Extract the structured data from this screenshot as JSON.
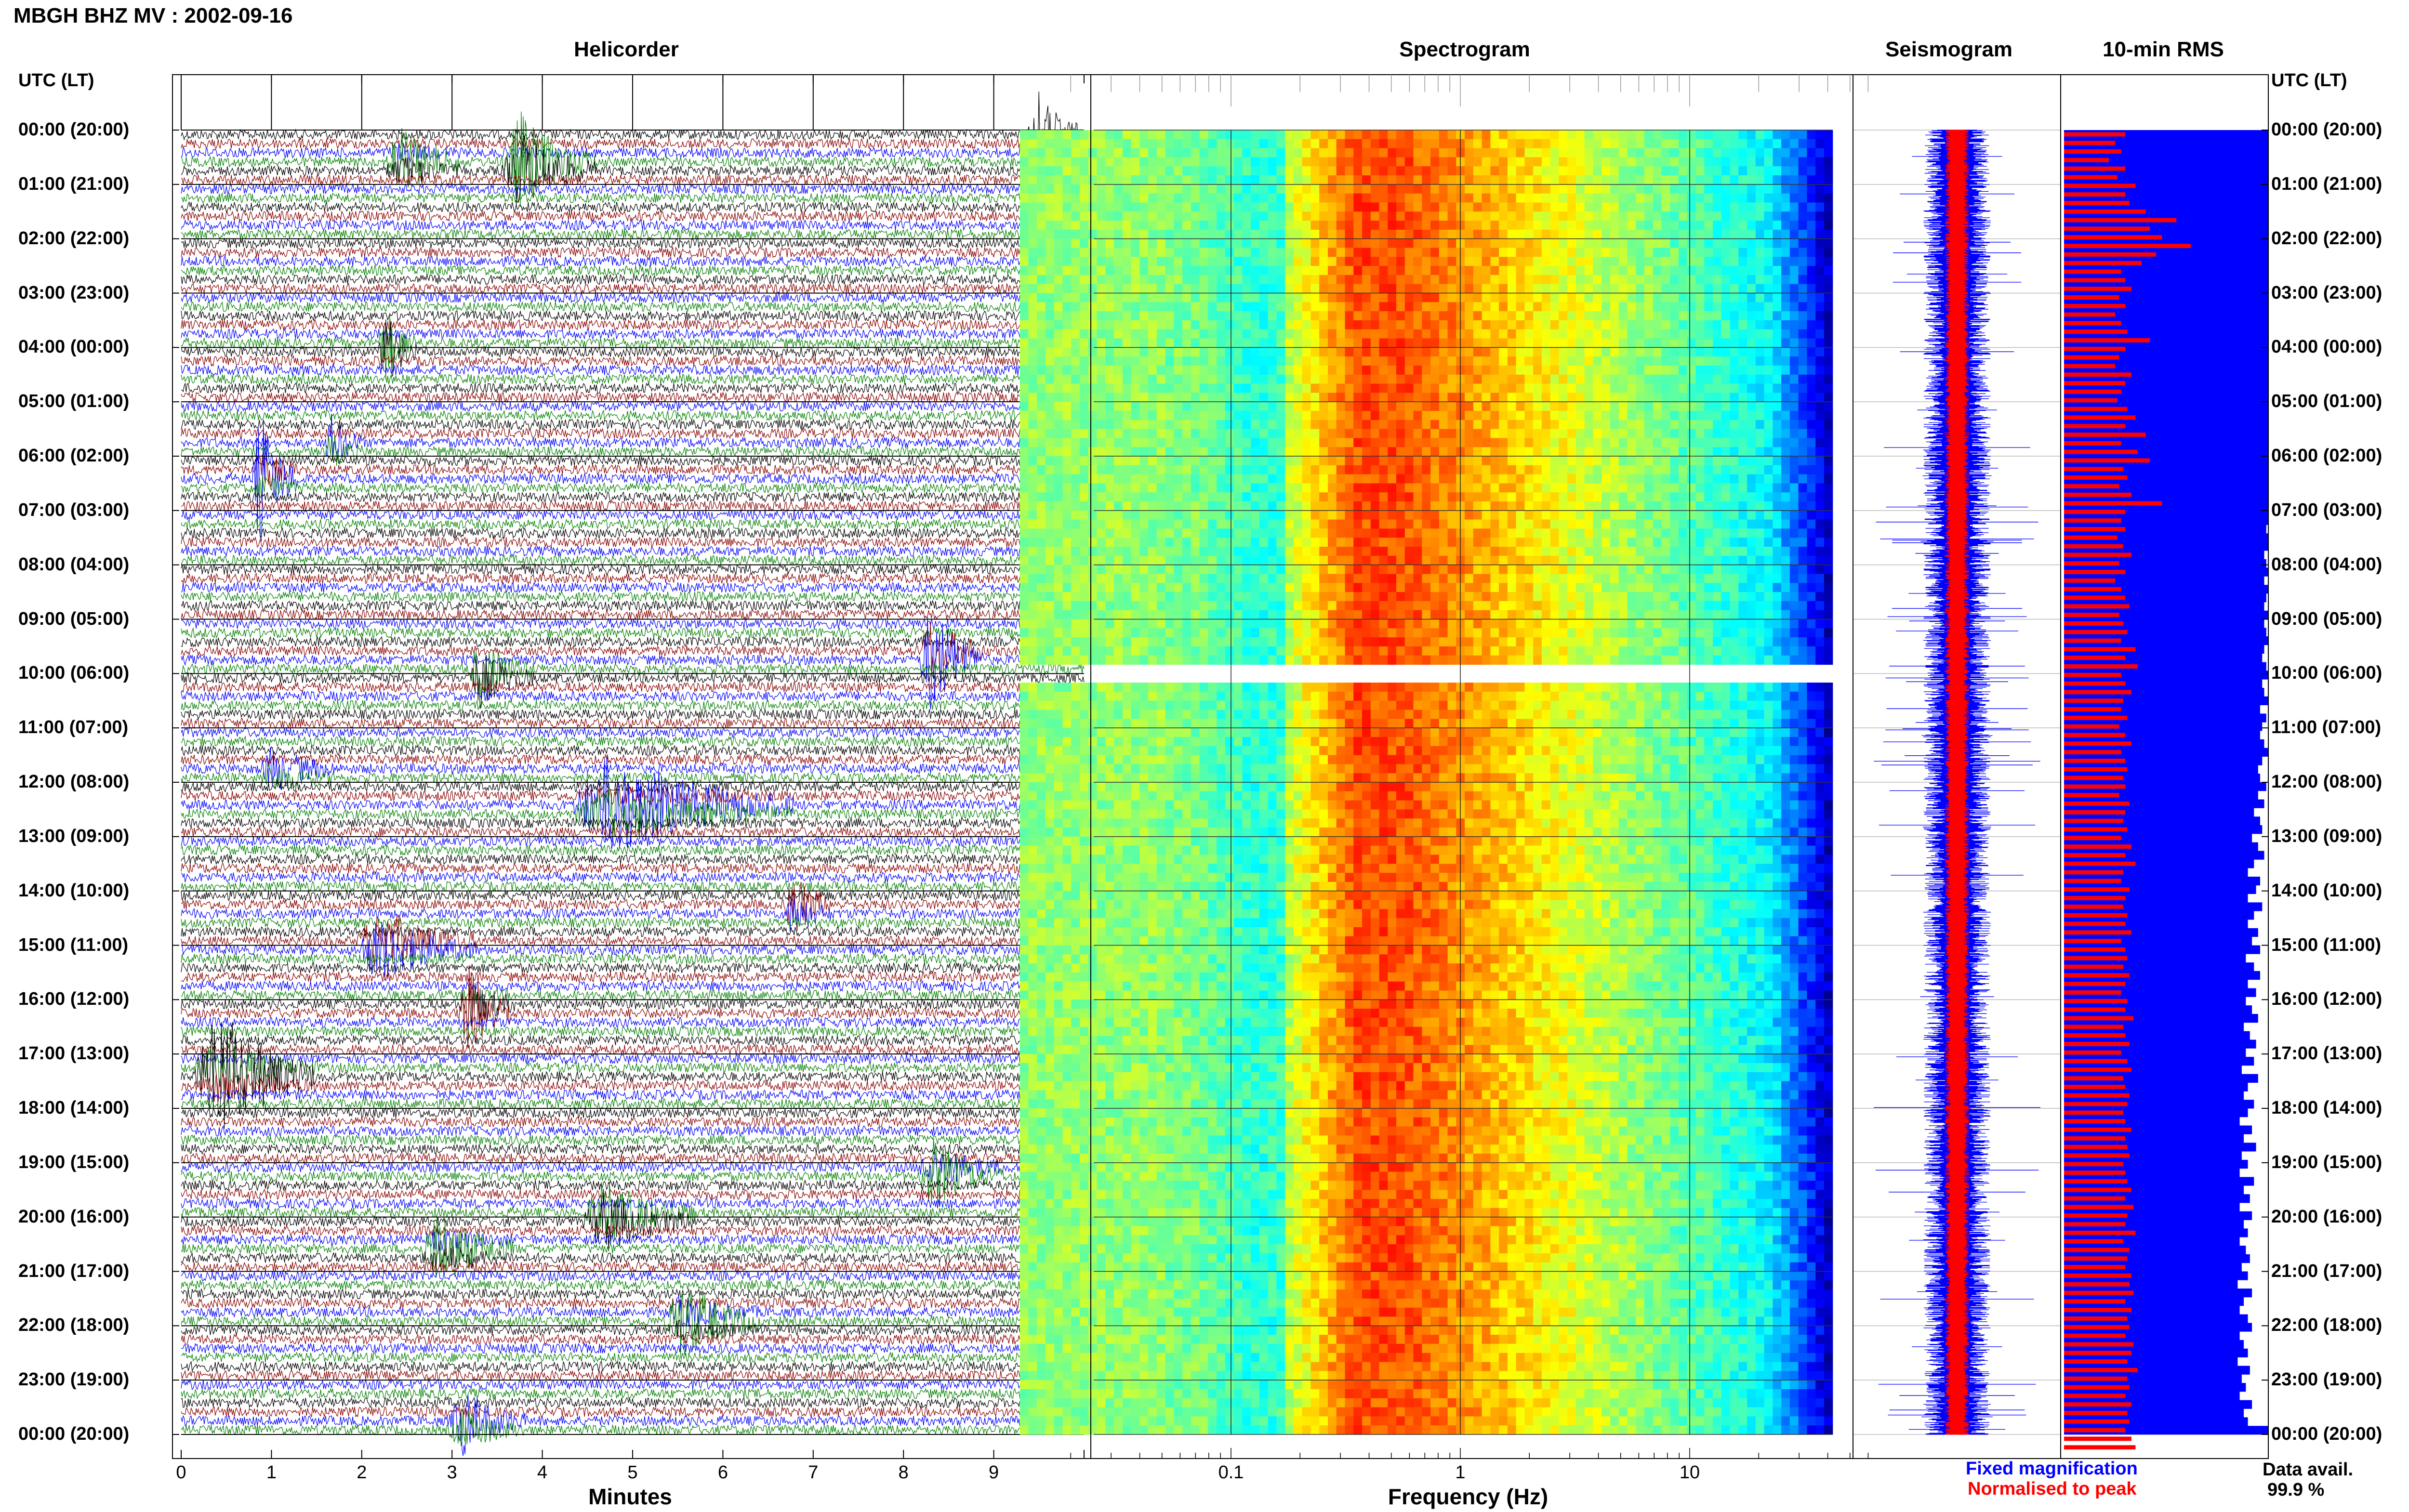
{
  "header": {
    "station_title": "MBGH BHZ MV : 2002-09-16",
    "time_axis_title": "UTC (LT)"
  },
  "panels": {
    "helicorder": "Helicorder",
    "spectrogram": "Spectrogram",
    "seismogram": "Seismogram",
    "rms": "10-min RMS"
  },
  "axes": {
    "minutes_label": "Minutes",
    "frequency_label": "Frequency (Hz)"
  },
  "legend": {
    "fixed": "Fixed magnification",
    "normalised": "Normalised to peak",
    "colors": {
      "fixed": "#0000ff",
      "normalised": "#ff0000"
    }
  },
  "availability": {
    "label": "Data avail.",
    "value": "99.9 %"
  },
  "chart_data": {
    "type": "heatmap",
    "time_labels": [
      "00:00 (20:00)",
      "01:00 (21:00)",
      "02:00 (22:00)",
      "03:00 (23:00)",
      "04:00 (00:00)",
      "05:00 (01:00)",
      "06:00 (02:00)",
      "07:00 (03:00)",
      "08:00 (04:00)",
      "09:00 (05:00)",
      "10:00 (06:00)",
      "11:00 (07:00)",
      "12:00 (08:00)",
      "13:00 (09:00)",
      "14:00 (10:00)",
      "15:00 (11:00)",
      "16:00 (12:00)",
      "17:00 (13:00)",
      "18:00 (14:00)",
      "19:00 (15:00)",
      "20:00 (16:00)",
      "21:00 (17:00)",
      "22:00 (18:00)",
      "23:00 (19:00)",
      "00:00 (20:00)"
    ],
    "minute_ticks": [
      "0",
      "1",
      "2",
      "3",
      "4",
      "5",
      "6",
      "7",
      "8",
      "9"
    ],
    "minute_range": [
      0,
      10
    ],
    "frequency_ticks": [
      "0.1",
      "1",
      "10"
    ],
    "frequency_range": [
      0.01,
      50
    ],
    "frequency_scale": "log",
    "helicorder_colors": [
      "#000000",
      "#8b0000",
      "#0000ff",
      "#008000"
    ],
    "helicorder_events": [
      {
        "hour": 0.05,
        "minute": 9.4,
        "amp": 1.8,
        "dur": 0.6,
        "color": "#8b0000"
      },
      {
        "hour": 0.6,
        "minute": 2.3,
        "amp": 1.5,
        "dur": 0.8,
        "color": "#0000ff"
      },
      {
        "hour": 0.65,
        "minute": 3.6,
        "amp": 2.5,
        "dur": 1.0,
        "color": "#008000"
      },
      {
        "hour": 4.0,
        "minute": 2.2,
        "amp": 2.2,
        "dur": 0.4,
        "color": "#008000"
      },
      {
        "hour": 5.8,
        "minute": 1.6,
        "amp": 1.2,
        "dur": 0.4,
        "color": "#000000"
      },
      {
        "hour": 6.4,
        "minute": 0.8,
        "amp": 2.6,
        "dur": 0.5,
        "color": "#8b0000"
      },
      {
        "hour": 9.7,
        "minute": 8.2,
        "amp": 2.6,
        "dur": 0.7,
        "color": "#8b0000"
      },
      {
        "hour": 10.0,
        "minute": 3.2,
        "amp": 1.6,
        "dur": 0.7,
        "color": "#0000ff"
      },
      {
        "hour": 11.8,
        "minute": 0.9,
        "amp": 1.0,
        "dur": 0.8,
        "color": "#000000"
      },
      {
        "hour": 12.45,
        "minute": 4.4,
        "amp": 2.2,
        "dur": 2.4,
        "color": "#8b0000"
      },
      {
        "hour": 14.3,
        "minute": 6.7,
        "amp": 1.6,
        "dur": 0.5,
        "color": "#000000"
      },
      {
        "hour": 15.0,
        "minute": 2.0,
        "amp": 1.8,
        "dur": 1.3,
        "color": "#8b0000"
      },
      {
        "hour": 16.2,
        "minute": 3.1,
        "amp": 2.2,
        "dur": 0.6,
        "color": "#000000"
      },
      {
        "hour": 17.1,
        "minute": 9.7,
        "amp": 1.8,
        "dur": 0.5,
        "color": "#000000"
      },
      {
        "hour": 17.4,
        "minute": 0.2,
        "amp": 2.8,
        "dur": 1.3,
        "color": "#008000"
      },
      {
        "hour": 19.2,
        "minute": 8.2,
        "amp": 1.6,
        "dur": 0.9,
        "color": "#8b0000"
      },
      {
        "hour": 20.0,
        "minute": 4.5,
        "amp": 1.8,
        "dur": 1.2,
        "color": "#008000"
      },
      {
        "hour": 20.6,
        "minute": 2.7,
        "amp": 1.5,
        "dur": 1.0,
        "color": "#8b0000"
      },
      {
        "hour": 21.9,
        "minute": 5.4,
        "amp": 1.6,
        "dur": 1.0,
        "color": "#000000"
      },
      {
        "hour": 23.8,
        "minute": 3.0,
        "amp": 1.5,
        "dur": 0.8,
        "color": "#008000"
      }
    ],
    "rms_fixed": [
      1.0,
      1.0,
      1.0,
      1.0,
      1.0,
      1.0,
      1.0,
      1.0,
      1.0,
      1.0,
      1.0,
      1.0,
      1.0,
      1.0,
      1.0,
      1.0,
      1.0,
      1.0,
      1.0,
      1.0,
      1.0,
      1.0,
      1.0,
      1.0,
      1.0,
      1.0,
      1.0,
      1.0,
      1.0,
      1.0,
      1.0,
      1.0,
      1.0,
      1.0,
      1.0,
      1.0,
      1.0,
      1.0,
      1.0,
      1.0,
      1.0,
      1.0,
      1.0,
      1.0,
      1.0,
      1.0,
      0.99,
      1.0,
      1.0,
      0.98,
      0.99,
      1.0,
      0.98,
      1.0,
      0.99,
      0.98,
      1.0,
      0.98,
      0.99,
      1.0,
      0.98,
      0.97,
      0.99,
      1.0,
      0.97,
      0.98,
      1.0,
      0.96,
      0.99,
      0.97,
      0.96,
      0.98,
      1.0,
      0.97,
      0.95,
      0.96,
      0.99,
      0.95,
      0.98,
      0.93,
      0.96,
      0.97,
      0.92,
      0.95,
      0.98,
      0.93,
      0.9,
      0.96,
      0.94,
      0.9,
      0.97,
      0.93,
      0.9,
      0.95,
      0.92,
      0.96,
      0.89,
      0.93,
      0.96,
      0.9,
      0.94,
      0.89,
      0.92,
      0.95,
      0.88,
      0.91,
      0.94,
      0.89,
      0.93,
      0.87,
      0.95,
      0.9,
      0.88,
      0.93,
      0.9,
      0.86,
      0.92,
      0.88,
      0.94,
      0.87,
      0.9,
      0.86,
      0.93,
      0.88,
      0.91,
      0.86,
      0.92,
      0.88,
      0.9,
      0.86,
      0.89,
      0.91,
      0.87,
      0.9,
      0.85,
      0.92,
      0.88,
      0.86,
      0.9,
      0.92,
      0.86,
      0.88,
      0.9,
      0.85,
      0.91,
      0.87,
      0.89,
      0.86,
      0.92,
      0.88,
      0.9,
      1.0
    ],
    "rms_normalised": [
      0.3,
      0.25,
      0.28,
      0.22,
      0.3,
      0.26,
      0.35,
      0.3,
      0.32,
      0.4,
      0.55,
      0.42,
      0.48,
      0.62,
      0.45,
      0.38,
      0.28,
      0.3,
      0.33,
      0.27,
      0.3,
      0.25,
      0.28,
      0.31,
      0.42,
      0.3,
      0.27,
      0.25,
      0.33,
      0.3,
      0.28,
      0.26,
      0.31,
      0.35,
      0.3,
      0.4,
      0.28,
      0.36,
      0.42,
      0.29,
      0.31,
      0.27,
      0.33,
      0.48,
      0.3,
      0.28,
      0.3,
      0.26,
      0.29,
      0.33,
      0.27,
      0.3,
      0.25,
      0.28,
      0.3,
      0.32,
      0.27,
      0.29,
      0.31,
      0.28,
      0.35,
      0.3,
      0.36,
      0.28,
      0.3,
      0.33,
      0.29,
      0.28,
      0.31,
      0.27,
      0.3,
      0.33,
      0.28,
      0.3,
      0.31,
      0.29,
      0.3,
      0.27,
      0.32,
      0.3,
      0.29,
      0.31,
      0.28,
      0.33,
      0.3,
      0.35,
      0.29,
      0.28,
      0.32,
      0.3,
      0.29,
      0.31,
      0.3,
      0.33,
      0.28,
      0.3,
      0.31,
      0.29,
      0.32,
      0.3,
      0.28,
      0.31,
      0.3,
      0.34,
      0.29,
      0.3,
      0.32,
      0.28,
      0.31,
      0.33,
      0.29,
      0.3,
      0.32,
      0.31,
      0.29,
      0.3,
      0.33,
      0.3,
      0.31,
      0.32,
      0.29,
      0.3,
      0.31,
      0.33,
      0.3,
      0.34,
      0.31,
      0.3,
      0.35,
      0.29,
      0.32,
      0.31,
      0.3,
      0.33,
      0.32,
      0.34,
      0.3,
      0.33,
      0.31,
      0.32,
      0.3,
      0.34,
      0.33,
      0.31,
      0.36,
      0.31,
      0.32,
      0.3,
      0.33,
      0.31,
      0.32,
      0.3,
      0.33,
      0.35
    ]
  }
}
